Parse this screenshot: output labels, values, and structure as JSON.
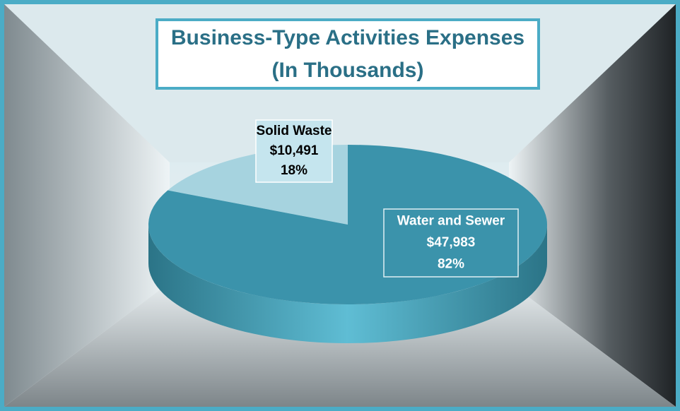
{
  "chart_data": {
    "type": "pie",
    "title": "Business-Type Activities Expenses",
    "subtitle": "(In Thousands)",
    "categories": [
      "Solid Waste",
      "Water and Sewer"
    ],
    "values": [
      10491,
      47983
    ],
    "value_labels": [
      "$10,491",
      "$47,983"
    ],
    "percent_labels": [
      "18%",
      "82%"
    ],
    "colors": [
      "#a6d3df",
      "#3b93ab"
    ]
  }
}
